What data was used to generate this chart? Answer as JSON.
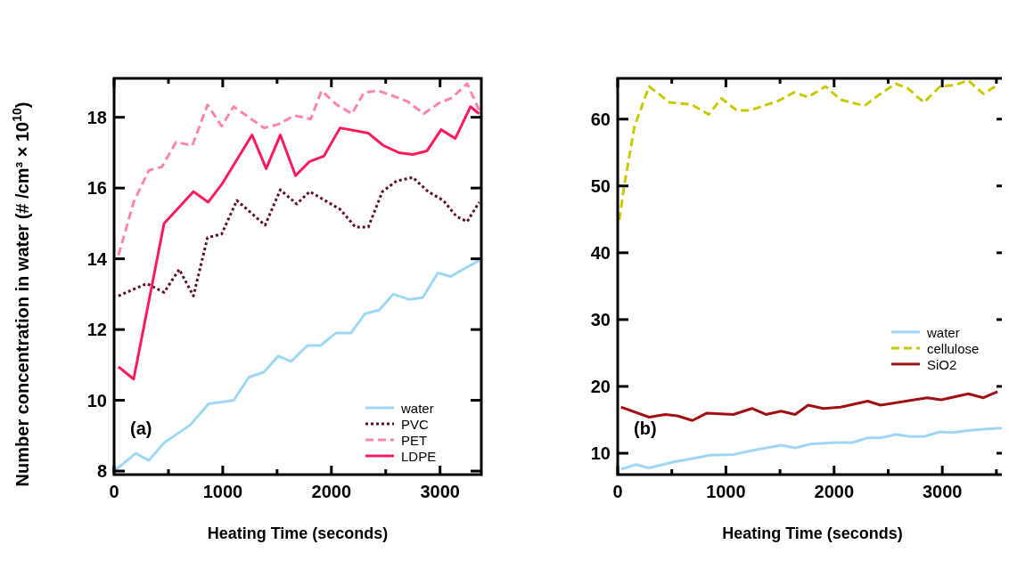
{
  "chart_data": [
    {
      "type": "line",
      "xlabel": "Heating Time (seconds)",
      "ylabel": "Number concentration in water (# /cm³ × 10$^{10}$)",
      "xlim": [
        0,
        3380
      ],
      "ylim": [
        7.9,
        19.1
      ],
      "xticks": [
        0,
        {
          "value": 500,
          "label": null
        },
        1000,
        {
          "value": 1500,
          "label": null
        },
        2000,
        {
          "value": 2500,
          "label": null
        },
        3000
      ],
      "yticks": [
        8,
        10,
        12,
        14,
        16,
        18
      ],
      "legend": "bottom right",
      "annotations": [
        "(a)"
      ],
      "series": [
        {
          "name": "water",
          "color": "#9fd8f5",
          "line_style": "solid",
          "x": [
            0,
            200,
            320,
            460,
            700,
            870,
            1100,
            1240,
            1380,
            1510,
            1630,
            1780,
            1900,
            2040,
            2180,
            2310,
            2440,
            2570,
            2720,
            2840,
            2980,
            3100,
            3240,
            3360
          ],
          "values": [
            8.0,
            8.5,
            8.3,
            8.8,
            9.3,
            9.9,
            10.0,
            10.65,
            10.8,
            11.25,
            11.1,
            11.55,
            11.55,
            11.9,
            11.9,
            12.45,
            12.55,
            13.0,
            12.85,
            12.9,
            13.6,
            13.5,
            13.75,
            13.95
          ]
        },
        {
          "name": "PVC",
          "color": "#5c0f2e",
          "line_style": "dotted",
          "x": [
            40,
            300,
            460,
            600,
            730,
            860,
            990,
            1130,
            1390,
            1530,
            1680,
            1800,
            2080,
            2220,
            2340,
            2470,
            2600,
            2750,
            2890,
            3030,
            3150,
            3250,
            3360
          ],
          "values": [
            12.95,
            13.3,
            13.05,
            13.7,
            12.95,
            14.6,
            14.7,
            15.65,
            14.95,
            15.95,
            15.55,
            15.9,
            15.4,
            14.9,
            14.9,
            15.9,
            16.2,
            16.3,
            15.9,
            15.65,
            15.2,
            15.05,
            15.6
          ]
        },
        {
          "name": "PET",
          "color": "#ff85ad",
          "line_style": "dashed",
          "x": [
            40,
            180,
            320,
            440,
            570,
            720,
            860,
            990,
            1100,
            1240,
            1380,
            1510,
            1660,
            1810,
            1910,
            2050,
            2190,
            2300,
            2430,
            2570,
            2700,
            2850,
            2990,
            3110,
            3250,
            3360
          ],
          "values": [
            14.1,
            15.6,
            16.5,
            16.6,
            17.3,
            17.2,
            18.35,
            17.75,
            18.3,
            18.0,
            17.7,
            17.8,
            18.05,
            17.95,
            18.75,
            18.35,
            18.1,
            18.7,
            18.75,
            18.6,
            18.45,
            18.1,
            18.4,
            18.55,
            18.95,
            18.2
          ]
        },
        {
          "name": "LDPE",
          "color": "#ff1a5e",
          "line_style": "solid",
          "x": [
            40,
            180,
            460,
            730,
            865,
            990,
            1270,
            1400,
            1530,
            1670,
            1800,
            1930,
            2080,
            2340,
            2480,
            2620,
            2750,
            2880,
            3010,
            3140,
            3280,
            3360
          ],
          "values": [
            10.95,
            10.6,
            15.0,
            15.9,
            15.6,
            16.1,
            17.5,
            16.55,
            17.5,
            16.35,
            16.75,
            16.9,
            17.7,
            17.55,
            17.2,
            17.0,
            16.95,
            17.05,
            17.65,
            17.4,
            18.3,
            18.1
          ]
        }
      ]
    },
    {
      "type": "line",
      "xlabel": "Heating Time (seconds)",
      "xlim": [
        0,
        3600
      ],
      "ylim": [
        6.8,
        66.1
      ],
      "xticks": [
        0,
        {
          "value": 500,
          "label": null
        },
        1000,
        {
          "value": 1500,
          "label": null
        },
        2000,
        {
          "value": 2500,
          "label": null
        },
        3000,
        {
          "value": 3500,
          "label": null
        }
      ],
      "yticks": [
        10,
        20,
        30,
        40,
        50,
        60
      ],
      "legend": "right",
      "annotations": [
        "(b)"
      ],
      "series": [
        {
          "name": "water",
          "color": "#9fd8f5",
          "line_style": "solid",
          "x": [
            30,
            170,
            290,
            520,
            690,
            850,
            1070,
            1240,
            1510,
            1640,
            1790,
            2030,
            2170,
            2310,
            2430,
            2570,
            2700,
            2830,
            2980,
            3100,
            3240,
            3380,
            3580
          ],
          "values": [
            7.6,
            8.3,
            7.8,
            8.7,
            9.2,
            9.7,
            9.8,
            10.4,
            11.2,
            10.8,
            11.4,
            11.6,
            11.6,
            12.3,
            12.3,
            12.8,
            12.5,
            12.5,
            13.2,
            13.1,
            13.4,
            13.6,
            13.8
          ]
        },
        {
          "name": "cellulose",
          "color": "#c9c900",
          "line_style": "dashed",
          "x": [
            15,
            60,
            155,
            290,
            480,
            680,
            840,
            960,
            1100,
            1220,
            1480,
            1630,
            1760,
            1920,
            2060,
            2280,
            2430,
            2570,
            2690,
            2830,
            2980,
            3120,
            3240,
            3380,
            3510
          ],
          "values": [
            44.9,
            50,
            58.9,
            64.9,
            62.5,
            62.2,
            60.7,
            63.1,
            61.3,
            61.3,
            62.7,
            64.0,
            63.3,
            64.9,
            62.9,
            62.0,
            63.8,
            65.3,
            64.5,
            62.5,
            64.9,
            65.1,
            65.8,
            63.8,
            65.1
          ]
        },
        {
          "name": "SiO2",
          "color": "#a01010",
          "line_style": "solid",
          "x": [
            30,
            290,
            440,
            550,
            690,
            825,
            1070,
            1240,
            1370,
            1510,
            1640,
            1760,
            1900,
            2060,
            2310,
            2430,
            2860,
            2990,
            3240,
            3380,
            3510
          ],
          "values": [
            16.9,
            15.4,
            15.8,
            15.6,
            14.9,
            16.0,
            15.8,
            16.7,
            15.8,
            16.3,
            15.8,
            17.2,
            16.7,
            16.9,
            17.8,
            17.2,
            18.3,
            18.0,
            18.9,
            18.3,
            19.2
          ]
        }
      ]
    }
  ]
}
